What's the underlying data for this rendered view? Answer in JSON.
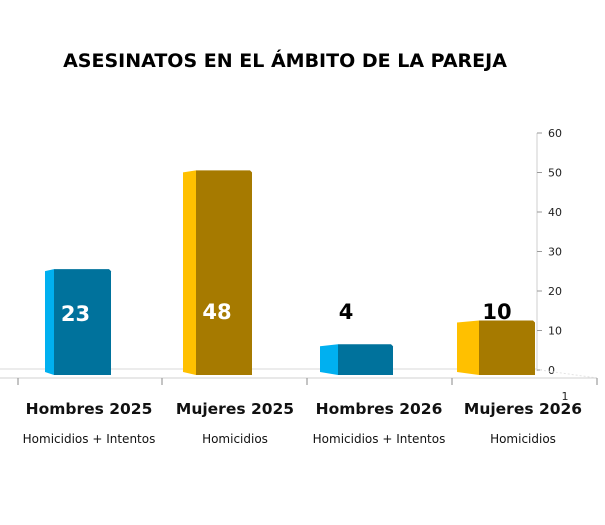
{
  "chart_data": {
    "type": "bar",
    "title": "ASESINATOS EN EL ÁMBITO DE LA PAREJA",
    "categories": [
      "Hombres 2025",
      "Mujeres 2025",
      "Hombres 2026",
      "Mujeres 2026"
    ],
    "subcategories": [
      "Homicidios + Intentos",
      "Homicidios",
      "Homicidios + Intentos",
      "Homicidios"
    ],
    "values": [
      23,
      48,
      4,
      10
    ],
    "data_labels": [
      "23",
      "48",
      "4",
      "10"
    ],
    "data_label_inside": [
      true,
      true,
      false,
      false
    ],
    "bar_colors": [
      {
        "front": "#00729C",
        "side": "#00B0F0"
      },
      {
        "front": "#A67A00",
        "side": "#FFC000"
      },
      {
        "front": "#00729C",
        "side": "#00B0F0"
      },
      {
        "front": "#A67A00",
        "side": "#FFC000"
      }
    ],
    "y_axis": {
      "position": "right",
      "ylim": [
        0,
        60
      ],
      "ticks": [
        0,
        10,
        20,
        30,
        40,
        50,
        60
      ],
      "tick_labels": [
        "0",
        "10",
        "20",
        "30",
        "40",
        "50",
        "60"
      ]
    },
    "x_axis_extra_label": "1",
    "xlabel": "",
    "ylabel": "",
    "grid": false,
    "legend": "none",
    "style": "3d-column"
  }
}
